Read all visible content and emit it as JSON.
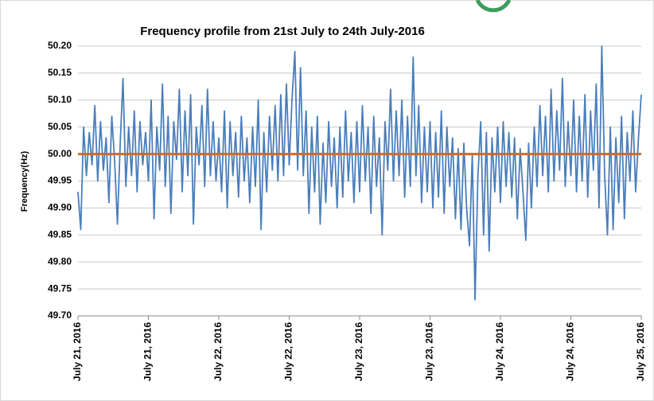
{
  "chart_data": {
    "type": "line",
    "title": "Frequency  profile from 21st July to 24th July-2016",
    "y_label": "Frequency(Hz)",
    "categories": [
      "July 21, 2016",
      null,
      null,
      null,
      null,
      null,
      null,
      null,
      null,
      null,
      null,
      null,
      null,
      null,
      null,
      null,
      null,
      null,
      null,
      null,
      null,
      null,
      null,
      null,
      null,
      "July 21, 2016",
      null,
      null,
      null,
      null,
      null,
      null,
      null,
      null,
      null,
      null,
      null,
      null,
      null,
      null,
      null,
      null,
      null,
      null,
      null,
      null,
      null,
      null,
      null,
      null,
      "July 22, 2016",
      null,
      null,
      null,
      null,
      null,
      null,
      null,
      null,
      null,
      null,
      null,
      null,
      null,
      null,
      null,
      null,
      null,
      null,
      null,
      null,
      null,
      null,
      null,
      null,
      "July 22, 2016",
      null,
      null,
      null,
      null,
      null,
      null,
      null,
      null,
      null,
      null,
      null,
      null,
      null,
      null,
      null,
      null,
      null,
      null,
      null,
      null,
      null,
      null,
      null,
      null,
      "July 23, 2016",
      null,
      null,
      null,
      null,
      null,
      null,
      null,
      null,
      null,
      null,
      null,
      null,
      null,
      null,
      null,
      null,
      null,
      null,
      null,
      null,
      null,
      null,
      null,
      null,
      "July 23, 2016",
      null,
      null,
      null,
      null,
      null,
      null,
      null,
      null,
      null,
      null,
      null,
      null,
      null,
      null,
      null,
      null,
      null,
      null,
      null,
      null,
      null,
      null,
      null,
      null,
      "July 24, 2016",
      null,
      null,
      null,
      null,
      null,
      null,
      null,
      null,
      null,
      null,
      null,
      null,
      null,
      null,
      null,
      null,
      null,
      null,
      null,
      null,
      null,
      null,
      null,
      null,
      "July 24, 2016",
      null,
      null,
      null,
      null,
      null,
      null,
      null,
      null,
      null,
      null,
      null,
      null,
      null,
      null,
      null,
      null,
      null,
      null,
      null,
      null,
      null,
      null,
      null,
      null,
      "July 25, 2016"
    ],
    "series": [
      {
        "color": "#4a7ebb",
        "values": [
          49.93,
          49.86,
          50.05,
          49.96,
          50.04,
          49.98,
          50.09,
          49.95,
          50.06,
          49.97,
          50.03,
          49.91,
          50.07,
          49.99,
          49.87,
          50.02,
          50.14,
          49.94,
          50.05,
          49.96,
          50.08,
          49.93,
          50.06,
          49.98,
          50.04,
          49.95,
          50.1,
          49.88,
          50.05,
          49.97,
          50.13,
          49.94,
          50.07,
          49.89,
          50.06,
          49.99,
          50.12,
          49.93,
          50.08,
          49.96,
          50.11,
          49.87,
          50.05,
          49.98,
          50.09,
          49.94,
          50.12,
          49.96,
          50.06,
          49.95,
          50.03,
          49.93,
          50.08,
          49.9,
          50.06,
          49.96,
          50.04,
          49.92,
          50.07,
          49.95,
          50.03,
          49.91,
          50.05,
          49.94,
          50.1,
          49.86,
          50.04,
          49.93,
          50.07,
          49.97,
          50.09,
          49.95,
          50.11,
          49.96,
          50.13,
          49.98,
          50.1,
          50.19,
          49.97,
          50.16,
          49.96,
          50.08,
          49.89,
          50.05,
          49.93,
          50.07,
          49.87,
          50.02,
          49.91,
          50.06,
          49.94,
          50.03,
          49.9,
          50.05,
          49.92,
          50.08,
          49.95,
          50.04,
          49.91,
          50.06,
          49.93,
          50.09,
          49.95,
          50.05,
          49.89,
          50.07,
          49.94,
          50.03,
          49.85,
          50.06,
          49.97,
          50.12,
          49.95,
          50.08,
          49.96,
          50.1,
          49.92,
          50.07,
          49.94,
          50.18,
          49.96,
          50.09,
          49.91,
          50.05,
          49.93,
          50.06,
          49.9,
          50.04,
          49.92,
          50.08,
          49.89,
          50.05,
          49.94,
          50.03,
          49.88,
          50.01,
          49.86,
          50.02,
          49.9,
          49.83,
          50.0,
          49.73,
          49.96,
          50.06,
          49.85,
          50.04,
          49.82,
          50.03,
          49.93,
          50.05,
          49.91,
          50.06,
          49.94,
          50.04,
          49.92,
          50.03,
          49.88,
          50.01,
          49.93,
          49.84,
          50.02,
          49.9,
          50.05,
          49.94,
          50.09,
          49.96,
          50.07,
          49.93,
          50.12,
          49.95,
          50.08,
          49.97,
          50.14,
          49.94,
          50.06,
          49.96,
          50.1,
          49.93,
          50.07,
          49.95,
          50.11,
          49.92,
          50.08,
          49.97,
          50.13,
          49.9,
          50.2,
          49.96,
          49.85,
          50.05,
          49.86,
          50.03,
          49.91,
          50.07,
          49.88,
          50.04,
          49.95,
          50.08,
          49.93,
          50.03,
          50.11
        ]
      }
    ],
    "reference_lines": [
      {
        "value": 50.0,
        "color": "#d0692a"
      }
    ],
    "ylim": [
      49.7,
      50.2
    ],
    "yticks": [
      {
        "value": 49.7,
        "label": "49.70"
      },
      {
        "value": 49.75,
        "label": "49.75"
      },
      {
        "value": 49.8,
        "label": "49.80"
      },
      {
        "value": 49.85,
        "label": "49.85"
      },
      {
        "value": 49.9,
        "label": "49.90"
      },
      {
        "value": 49.95,
        "label": "49.95"
      },
      {
        "value": 50.0,
        "label": "50.00"
      },
      {
        "value": 50.05,
        "label": "50.05"
      },
      {
        "value": 50.1,
        "label": "50.10"
      },
      {
        "value": 50.15,
        "label": "50.15"
      },
      {
        "value": 50.2,
        "label": "50.20"
      }
    ],
    "grid": true
  }
}
